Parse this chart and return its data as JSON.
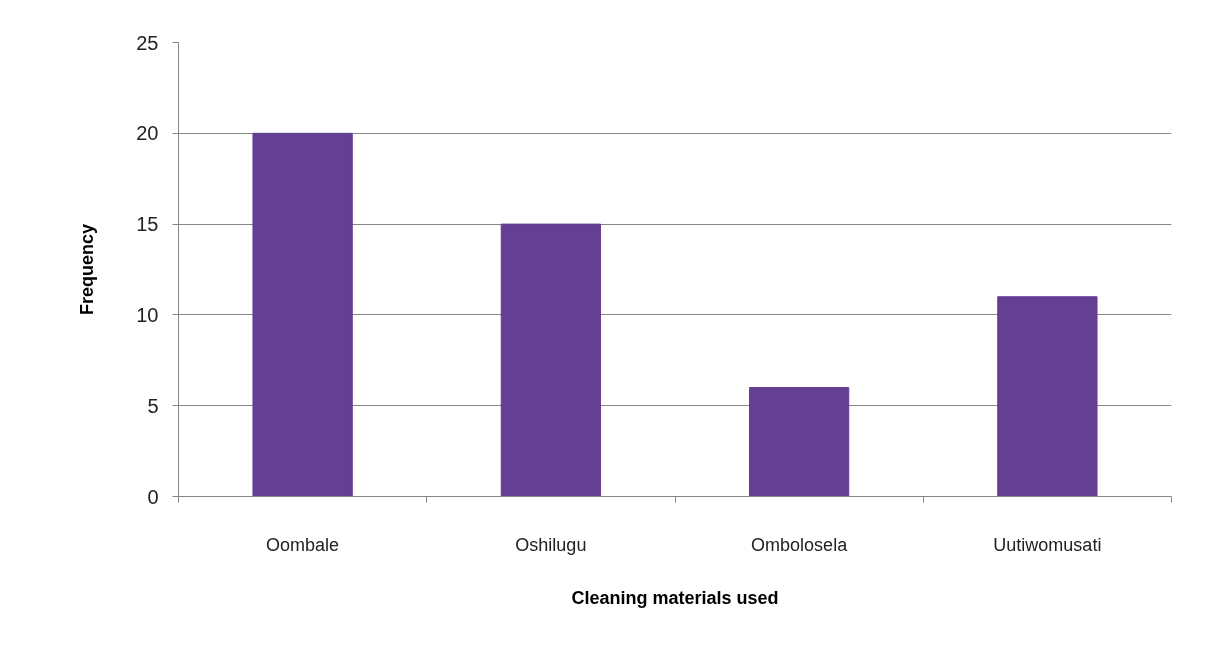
{
  "chart_data": {
    "type": "bar",
    "xlabel": "Cleaning materials used",
    "ylabel": "Frequency",
    "categories": [
      "Oombale",
      "Oshilugu",
      "Ombolosela",
      "Uutiwomusati"
    ],
    "values": [
      20,
      15,
      6,
      11
    ],
    "color": "#643f94",
    "ylim": [
      0,
      25
    ],
    "yticks": [
      0,
      5,
      10,
      15,
      20,
      25
    ],
    "grid": "y"
  }
}
